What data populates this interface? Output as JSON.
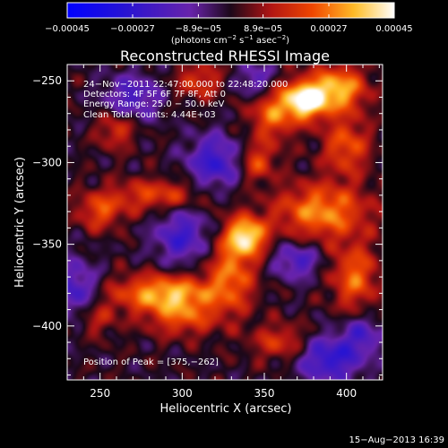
{
  "chart_data": {
    "type": "heatmap",
    "title": "Reconstructed RHESSI Image",
    "xlabel": "Heliocentric X (arcsec)",
    "ylabel": "Heliocentric Y (arcsec)",
    "xlim": [
      230,
      422
    ],
    "ylim": [
      -433,
      -240
    ],
    "x_ticks": [
      250,
      300,
      350,
      400
    ],
    "y_ticks": [
      -250,
      -300,
      -350,
      -400
    ],
    "x_tick_labels": [
      "250",
      "300",
      "350",
      "400"
    ],
    "y_tick_labels": [
      "−250",
      "−300",
      "−350",
      "−400"
    ],
    "colorbar": {
      "range": [
        -0.00045,
        0.00045
      ],
      "tick_values": [
        -0.00045,
        -0.00027,
        -8.9e-05,
        8.9e-05,
        0.00027,
        0.00045
      ],
      "tick_labels": [
        "−0.00045",
        "−0.00027",
        "−8.9e−05",
        "8.9e−05",
        "0.00027",
        "0.00045"
      ],
      "units_prefix": "(photons cm",
      "units_exp1": "−2",
      "units_mid": " s",
      "units_exp2": "−1",
      "units_mid2": " asec",
      "units_exp3": "−2",
      "units_suffix": ")"
    },
    "annotations": {
      "time_range": "24−Nov−2011 22:47:00.000 to 22:48:20.000",
      "detectors": "Detectors: 4F 5F 6F 7F 8F, Att 0",
      "energy": "Energy Range: 25.0 − 50.0 keV",
      "clean": "Clean     Total counts: 4.44E+03",
      "peak": "Position of Peak = [375,−262]"
    },
    "peak": {
      "x": 375,
      "y": -262
    },
    "grid": false,
    "colors": {
      "background": "#000000",
      "text": "#ffffff",
      "colormap": "blue-purple-red-yellow-white"
    },
    "features": [
      {
        "x": 375,
        "y": -262,
        "amp": 1.0,
        "sx": 9,
        "sy": 8
      },
      {
        "x": 395,
        "y": -255,
        "amp": 0.75,
        "sx": 12,
        "sy": 10
      },
      {
        "x": 355,
        "y": -270,
        "amp": 0.55,
        "sx": 10,
        "sy": 12
      },
      {
        "x": 400,
        "y": -290,
        "amp": 0.5,
        "sx": 10,
        "sy": 12
      },
      {
        "x": 385,
        "y": -330,
        "amp": 0.65,
        "sx": 20,
        "sy": 12
      },
      {
        "x": 405,
        "y": -370,
        "amp": 0.55,
        "sx": 10,
        "sy": 14
      },
      {
        "x": 340,
        "y": -345,
        "amp": 0.8,
        "sx": 8,
        "sy": 8
      },
      {
        "x": 330,
        "y": -365,
        "amp": 0.55,
        "sx": 10,
        "sy": 18
      },
      {
        "x": 290,
        "y": -380,
        "amp": 0.75,
        "sx": 22,
        "sy": 8
      },
      {
        "x": 300,
        "y": -395,
        "amp": 0.45,
        "sx": 15,
        "sy": 8
      },
      {
        "x": 250,
        "y": -330,
        "amp": 0.45,
        "sx": 10,
        "sy": 8
      },
      {
        "x": 285,
        "y": -320,
        "amp": 0.45,
        "sx": 20,
        "sy": 7
      },
      {
        "x": 260,
        "y": -280,
        "amp": 0.4,
        "sx": 8,
        "sy": 8
      },
      {
        "x": 310,
        "y": -250,
        "amp": 0.4,
        "sx": 10,
        "sy": 8
      },
      {
        "x": 345,
        "y": -300,
        "amp": 0.45,
        "sx": 8,
        "sy": 8
      },
      {
        "x": 360,
        "y": -410,
        "amp": 0.4,
        "sx": 12,
        "sy": 8
      },
      {
        "x": 245,
        "y": -395,
        "amp": 0.35,
        "sx": 10,
        "sy": 8
      },
      {
        "x": 320,
        "y": -300,
        "amp": -0.55,
        "sx": 12,
        "sy": 12
      },
      {
        "x": 235,
        "y": -380,
        "amp": -0.5,
        "sx": 10,
        "sy": 14
      },
      {
        "x": 390,
        "y": -420,
        "amp": -0.6,
        "sx": 14,
        "sy": 10
      },
      {
        "x": 300,
        "y": -345,
        "amp": -0.5,
        "sx": 12,
        "sy": 12
      },
      {
        "x": 270,
        "y": -260,
        "amp": -0.45,
        "sx": 12,
        "sy": 10
      },
      {
        "x": 410,
        "y": -405,
        "amp": -0.4,
        "sx": 8,
        "sy": 8
      },
      {
        "x": 345,
        "y": -250,
        "amp": -0.4,
        "sx": 8,
        "sy": 8
      },
      {
        "x": 370,
        "y": -360,
        "amp": -0.45,
        "sx": 10,
        "sy": 8
      }
    ]
  },
  "footer": {
    "timestamp": "15−Aug−2013 16:39"
  }
}
